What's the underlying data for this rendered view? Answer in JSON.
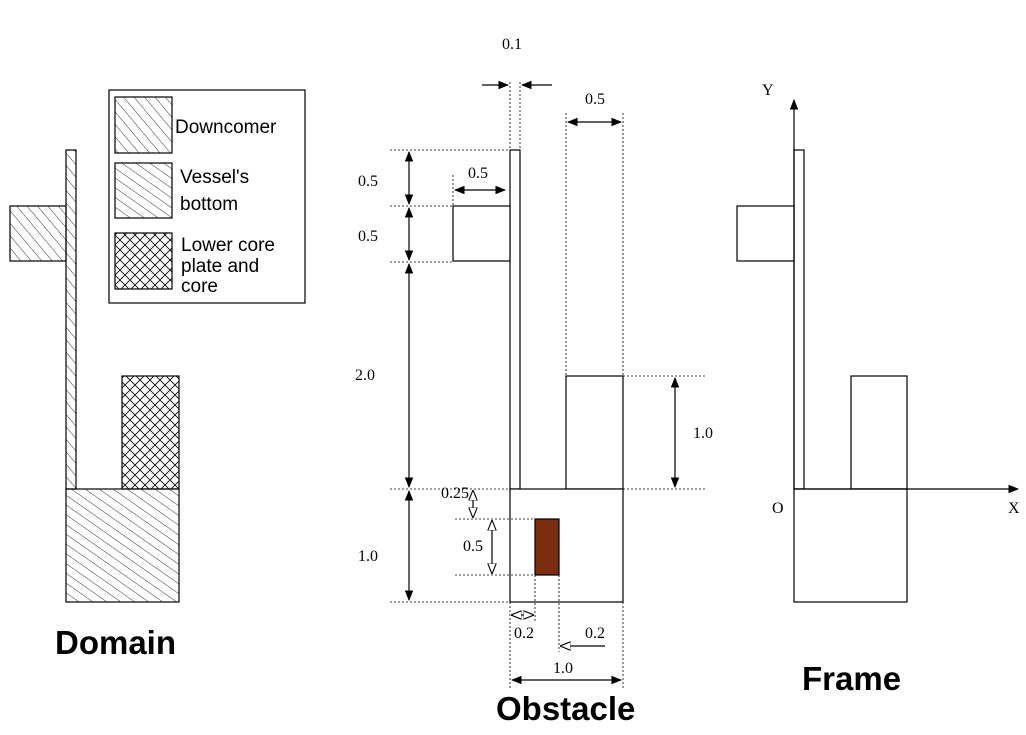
{
  "titles": {
    "domain": "Domain",
    "obstacle": "Obstacle",
    "frame": "Frame"
  },
  "legend": {
    "downcomer": "Downcomer",
    "vessel_line1": "Vessel's",
    "vessel_line2": "bottom",
    "core_line1": "Lower core",
    "core_line2": "plate and",
    "core_line3": "core"
  },
  "dimensions": {
    "wall_thickness": "0.1",
    "top_gap_width": "0.5",
    "downcomer_top": "0.5",
    "inlet_width": "0.5",
    "inlet_height": "0.5",
    "downcomer_height": "2.0",
    "core_height": "1.0",
    "bottom_offset": "0.25",
    "obstacle_height": "0.5",
    "bottom_height": "1.0",
    "obstacle_left": "0.2",
    "obstacle_right": "0.2",
    "bottom_width": "1.0"
  },
  "axes": {
    "y_label": "Y",
    "x_label": "X",
    "origin_label": "O"
  },
  "colors": {
    "obstacle_fill": "#7a2e0e",
    "stroke": "#000000"
  }
}
